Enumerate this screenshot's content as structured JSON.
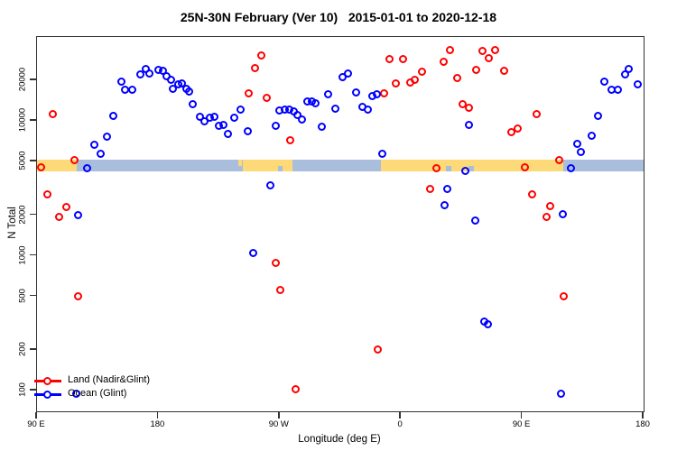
{
  "title": "25N-30N February (Ver 10)   2015-01-01 to 2020-12-18",
  "chart_data": {
    "type": "scatter",
    "title": "25N-30N February (Ver 10)   2015-01-01 to 2020-12-18",
    "xlabel": "Longitude (deg E)",
    "ylabel": "N Total",
    "x_axis": {
      "note": "longitude axis spans 450 deg, from 90E eastward to 180; 90E-180E data is drawn at both ends",
      "range_deg": [
        90,
        540
      ],
      "ticks": [
        {
          "deg": 90,
          "label": "90 E"
        },
        {
          "deg": 180,
          "label": "180"
        },
        {
          "deg": 270,
          "label": "90 W"
        },
        {
          "deg": 360,
          "label": "0"
        },
        {
          "deg": 450,
          "label": "90 E"
        },
        {
          "deg": 540,
          "label": "180"
        }
      ]
    },
    "y_axis": {
      "scale": "log10",
      "range": [
        70,
        42000
      ],
      "ticks": [
        100,
        200,
        500,
        1000,
        2000,
        5000,
        10000,
        20000
      ]
    },
    "legend_position": "bottom-left",
    "grid": false,
    "map_band": {
      "comment": "land/ocean world-map strip drawn across the plot near N=5000",
      "n_top": 5150,
      "n_bottom": 4200,
      "ocean_color": "#a9bedd",
      "land_color": "#fdd977",
      "land_segments_deg": [
        {
          "from": 90,
          "to": 119.5
        },
        {
          "from": 239.5,
          "to": 242.0,
          "half": "top"
        },
        {
          "from": 242.7,
          "to": 279.5
        },
        {
          "from": 345.1,
          "to": 480.4
        }
      ],
      "ocean_patches_deg": [
        {
          "from": 268.8,
          "to": 272.1,
          "half": "bottom"
        },
        {
          "from": 393.3,
          "to": 397.3,
          "half": "bottom"
        },
        {
          "from": 410.0,
          "to": 414.0,
          "half": "bottom"
        }
      ]
    },
    "series": [
      {
        "name": "Land (Nadir&Glint)",
        "color": "#ff0000",
        "points": [
          [
            92.7,
            4500
          ],
          [
            97.8,
            2870
          ],
          [
            101.6,
            11200
          ],
          [
            106.7,
            1950
          ],
          [
            111.9,
            2300
          ],
          [
            117.9,
            5080
          ],
          [
            120.6,
            500
          ],
          [
            246.9,
            15950
          ],
          [
            251.4,
            24700
          ],
          [
            256.3,
            30500
          ],
          [
            260.3,
            14770
          ],
          [
            267.0,
            880
          ],
          [
            270.8,
            560
          ],
          [
            277.5,
            7130
          ],
          [
            282.0,
            103
          ],
          [
            342.9,
            203
          ],
          [
            347.3,
            15950
          ],
          [
            351.6,
            28900
          ],
          [
            356.0,
            18900
          ],
          [
            361.6,
            28900
          ],
          [
            367.2,
            19100
          ],
          [
            370.4,
            20100
          ],
          [
            375.7,
            23200
          ],
          [
            381.7,
            3140
          ],
          [
            386.2,
            4480
          ],
          [
            391.4,
            27400
          ],
          [
            396.5,
            33300
          ],
          [
            401.8,
            20900
          ],
          [
            405.8,
            13380
          ],
          [
            410.7,
            12500
          ],
          [
            415.9,
            23800
          ],
          [
            420.8,
            33000
          ],
          [
            425.3,
            29100
          ],
          [
            430.0,
            33500
          ],
          [
            436.7,
            23600
          ],
          [
            442.0,
            8290
          ],
          [
            446.4,
            8800
          ],
          [
            452.0,
            4540
          ],
          [
            457.1,
            2870
          ],
          [
            460.5,
            11200
          ],
          [
            467.9,
            1950
          ],
          [
            471.0,
            2330
          ],
          [
            477.3,
            5090
          ],
          [
            480.6,
            500
          ]
        ]
      },
      {
        "name": "Ocean (Glint)",
        "color": "#0000ff",
        "points": [
          [
            119.0,
            95
          ],
          [
            120.6,
            2010
          ],
          [
            127.3,
            4480
          ],
          [
            132.4,
            6680
          ],
          [
            136.9,
            5740
          ],
          [
            142.2,
            7680
          ],
          [
            146.3,
            10900
          ],
          [
            152.7,
            19600
          ],
          [
            155.4,
            16900
          ],
          [
            160.5,
            16900
          ],
          [
            167.0,
            22000
          ],
          [
            170.8,
            24200
          ],
          [
            173.7,
            22600
          ],
          [
            179.9,
            24000
          ],
          [
            183.1,
            23400
          ],
          [
            186.4,
            21500
          ],
          [
            189.3,
            20100
          ],
          [
            191.1,
            17300
          ],
          [
            194.5,
            18700
          ],
          [
            197.6,
            18900
          ],
          [
            201.0,
            17300
          ],
          [
            202.7,
            16600
          ],
          [
            205.6,
            13400
          ],
          [
            211.0,
            10760
          ],
          [
            214.5,
            9960
          ],
          [
            218.4,
            10600
          ],
          [
            221.5,
            10650
          ],
          [
            225.0,
            9200
          ],
          [
            228.4,
            9400
          ],
          [
            231.7,
            8000
          ],
          [
            236.2,
            10600
          ],
          [
            241.1,
            12100
          ],
          [
            246.2,
            8420
          ],
          [
            250.7,
            1050
          ],
          [
            263.4,
            3300
          ],
          [
            266.8,
            9130
          ],
          [
            269.9,
            11900
          ],
          [
            273.5,
            12200
          ],
          [
            277.3,
            12200
          ],
          [
            280.8,
            11750
          ],
          [
            283.5,
            11000
          ],
          [
            286.4,
            10300
          ],
          [
            290.7,
            13870
          ],
          [
            294.2,
            14000
          ],
          [
            296.4,
            13500
          ],
          [
            301.4,
            9000
          ],
          [
            305.8,
            15850
          ],
          [
            311.0,
            12300
          ],
          [
            316.5,
            21000
          ],
          [
            321.0,
            22400
          ],
          [
            327.0,
            16200
          ],
          [
            331.7,
            12730
          ],
          [
            335.6,
            12200
          ],
          [
            338.9,
            15300
          ],
          [
            342.3,
            15700
          ],
          [
            346.2,
            5670
          ],
          [
            392.5,
            2360
          ],
          [
            394.2,
            3140
          ],
          [
            407.5,
            4240
          ],
          [
            410.7,
            9400
          ],
          [
            415.2,
            1830
          ],
          [
            421.9,
            327
          ],
          [
            424.8,
            311
          ],
          [
            478.8,
            95
          ],
          [
            479.9,
            2040
          ],
          [
            486.4,
            4480
          ],
          [
            490.5,
            6750
          ],
          [
            493.5,
            5900
          ],
          [
            501.3,
            7730
          ],
          [
            506.3,
            10900
          ],
          [
            511.2,
            19400
          ],
          [
            516.3,
            17050
          ],
          [
            520.8,
            17050
          ],
          [
            526.4,
            22100
          ],
          [
            529.1,
            24100
          ],
          [
            535.8,
            18800
          ]
        ]
      }
    ]
  },
  "legend": {
    "entries": [
      {
        "label": "Land (Nadir&Glint)",
        "color": "#ff0000"
      },
      {
        "label": "Ocean (Glint)",
        "color": "#0000ff"
      }
    ]
  },
  "colors": {
    "land_points": "#ff0000",
    "ocean_points": "#0000ff",
    "band_ocean": "#a9bedd",
    "band_land": "#fdd977",
    "axis": "#333333"
  }
}
